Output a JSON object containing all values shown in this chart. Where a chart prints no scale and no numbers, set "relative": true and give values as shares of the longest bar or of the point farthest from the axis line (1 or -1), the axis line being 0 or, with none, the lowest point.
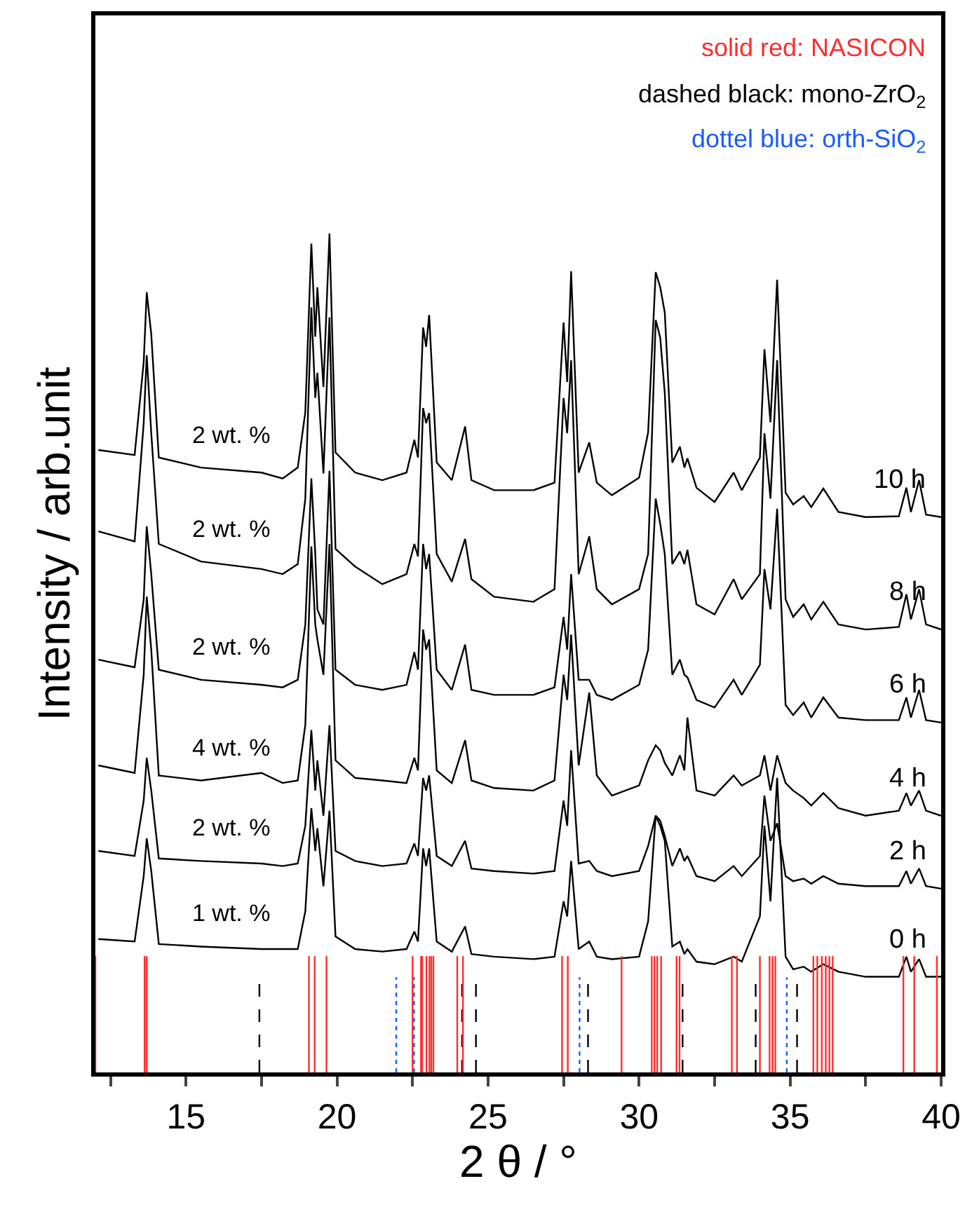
{
  "chart_data": {
    "type": "line",
    "relative": true,
    "xlabel": "2 θ / °",
    "ylabel": "Intensity / arb.unit",
    "xlim": [
      12,
      40
    ],
    "xticks": [
      {
        "value": 12.5,
        "label": null
      },
      15,
      {
        "value": 17.5,
        "label": null
      },
      20,
      {
        "value": 22.5,
        "label": null
      },
      25,
      {
        "value": 27.5,
        "label": null
      },
      30,
      {
        "value": 32.5,
        "label": null
      },
      35,
      {
        "value": 37.5,
        "label": null
      },
      40
    ],
    "tick_labels": "x",
    "legend": false,
    "marker": "none",
    "line_style": "solid",
    "x": [
      12.1,
      13.3,
      13.6,
      13.7,
      13.85,
      14.1,
      15.5,
      17.5,
      18.2,
      18.7,
      18.95,
      19.15,
      19.28,
      19.35,
      19.55,
      19.75,
      19.95,
      20.6,
      21.5,
      22.3,
      22.56,
      22.68,
      22.85,
      22.95,
      23.05,
      23.3,
      23.8,
      24.24,
      24.45,
      25.2,
      26.5,
      27.2,
      27.5,
      27.62,
      27.75,
      28.0,
      28.35,
      28.6,
      29.1,
      30.0,
      30.3,
      30.55,
      30.7,
      30.85,
      31.1,
      31.35,
      31.5,
      31.6,
      31.9,
      32.5,
      33.13,
      33.4,
      34.0,
      34.15,
      34.35,
      34.57,
      34.85,
      35.1,
      35.45,
      35.7,
      36.1,
      36.6,
      37.5,
      38.6,
      38.85,
      39.0,
      39.27,
      39.5,
      40.0
    ],
    "series": [
      {
        "name": "10 h",
        "color": "#000000",
        "values": [
          0.742,
          0.736,
          0.847,
          0.93,
          0.88,
          0.733,
          0.721,
          0.715,
          0.708,
          0.721,
          0.787,
          0.988,
          0.877,
          0.936,
          0.817,
          1.0,
          0.739,
          0.715,
          0.706,
          0.715,
          0.754,
          0.733,
          0.888,
          0.865,
          0.903,
          0.727,
          0.706,
          0.77,
          0.706,
          0.694,
          0.694,
          0.703,
          0.894,
          0.823,
          0.955,
          0.715,
          0.751,
          0.703,
          0.688,
          0.709,
          0.763,
          0.954,
          0.936,
          0.906,
          0.727,
          0.746,
          0.721,
          0.732,
          0.697,
          0.68,
          0.715,
          0.694,
          0.733,
          0.862,
          0.775,
          0.945,
          0.691,
          0.677,
          0.687,
          0.674,
          0.696,
          0.668,
          0.662,
          0.663,
          0.697,
          0.668,
          0.706,
          0.665,
          0.662
        ]
      },
      {
        "name": "8 h",
        "color": "#000000",
        "values": [
          0.645,
          0.633,
          0.774,
          0.855,
          0.762,
          0.63,
          0.609,
          0.6,
          0.594,
          0.606,
          0.684,
          0.912,
          0.804,
          0.834,
          0.714,
          0.9,
          0.624,
          0.603,
          0.582,
          0.594,
          0.63,
          0.615,
          0.792,
          0.774,
          0.786,
          0.618,
          0.585,
          0.636,
          0.588,
          0.567,
          0.561,
          0.576,
          0.804,
          0.762,
          0.849,
          0.594,
          0.639,
          0.576,
          0.558,
          0.576,
          0.618,
          0.897,
          0.876,
          0.81,
          0.606,
          0.621,
          0.606,
          0.623,
          0.558,
          0.546,
          0.588,
          0.564,
          0.594,
          0.762,
          0.684,
          0.849,
          0.564,
          0.543,
          0.558,
          0.54,
          0.561,
          0.534,
          0.528,
          0.531,
          0.57,
          0.54,
          0.576,
          0.534,
          0.528
        ]
      },
      {
        "name": "6 h",
        "color": "#000000",
        "values": [
          0.492,
          0.483,
          0.564,
          0.651,
          0.594,
          0.48,
          0.468,
          0.462,
          0.459,
          0.468,
          0.534,
          0.708,
          0.618,
          0.552,
          0.534,
          0.717,
          0.48,
          0.462,
          0.456,
          0.462,
          0.501,
          0.48,
          0.63,
          0.6,
          0.618,
          0.48,
          0.456,
          0.51,
          0.456,
          0.45,
          0.45,
          0.459,
          0.543,
          0.504,
          0.594,
          0.468,
          0.468,
          0.45,
          0.444,
          0.462,
          0.504,
          0.684,
          0.654,
          0.618,
          0.474,
          0.492,
          0.474,
          0.471,
          0.444,
          0.435,
          0.468,
          0.45,
          0.486,
          0.6,
          0.552,
          0.672,
          0.438,
          0.426,
          0.441,
          0.423,
          0.447,
          0.423,
          0.42,
          0.42,
          0.447,
          0.423,
          0.456,
          0.42,
          0.417
        ]
      },
      {
        "name": "4 h",
        "color": "#000000",
        "values": [
          0.366,
          0.357,
          0.474,
          0.567,
          0.504,
          0.354,
          0.348,
          0.357,
          0.345,
          0.348,
          0.414,
          0.627,
          0.534,
          0.516,
          0.474,
          0.63,
          0.372,
          0.351,
          0.348,
          0.345,
          0.375,
          0.36,
          0.528,
          0.504,
          0.516,
          0.36,
          0.345,
          0.396,
          0.348,
          0.339,
          0.336,
          0.348,
          0.474,
          0.444,
          0.522,
          0.366,
          0.453,
          0.354,
          0.33,
          0.342,
          0.372,
          0.39,
          0.384,
          0.369,
          0.354,
          0.378,
          0.36,
          0.423,
          0.336,
          0.33,
          0.354,
          0.342,
          0.354,
          0.378,
          0.336,
          0.378,
          0.345,
          0.336,
          0.327,
          0.318,
          0.333,
          0.315,
          0.306,
          0.312,
          0.333,
          0.318,
          0.336,
          0.312,
          0.306
        ]
      },
      {
        "name": "2 h",
        "color": "#000000",
        "values": [
          0.264,
          0.258,
          0.324,
          0.375,
          0.336,
          0.255,
          0.252,
          0.249,
          0.246,
          0.249,
          0.294,
          0.408,
          0.336,
          0.372,
          0.306,
          0.414,
          0.264,
          0.252,
          0.246,
          0.249,
          0.273,
          0.258,
          0.351,
          0.336,
          0.354,
          0.258,
          0.246,
          0.276,
          0.243,
          0.24,
          0.237,
          0.24,
          0.324,
          0.294,
          0.384,
          0.249,
          0.252,
          0.24,
          0.234,
          0.24,
          0.27,
          0.306,
          0.3,
          0.282,
          0.246,
          0.267,
          0.252,
          0.258,
          0.234,
          0.228,
          0.246,
          0.234,
          0.258,
          0.33,
          0.276,
          0.297,
          0.234,
          0.228,
          0.231,
          0.225,
          0.234,
          0.225,
          0.222,
          0.222,
          0.24,
          0.225,
          0.243,
          0.222,
          0.219
        ]
      },
      {
        "name": "0 h",
        "color": "#000000",
        "values": [
          0.159,
          0.156,
          0.234,
          0.279,
          0.24,
          0.153,
          0.15,
          0.147,
          0.147,
          0.147,
          0.192,
          0.315,
          0.264,
          0.291,
          0.222,
          0.312,
          0.162,
          0.147,
          0.144,
          0.147,
          0.168,
          0.156,
          0.267,
          0.246,
          0.267,
          0.156,
          0.144,
          0.174,
          0.141,
          0.138,
          0.135,
          0.138,
          0.204,
          0.186,
          0.252,
          0.147,
          0.156,
          0.138,
          0.135,
          0.138,
          0.18,
          0.306,
          0.294,
          0.276,
          0.15,
          0.156,
          0.141,
          0.147,
          0.132,
          0.129,
          0.138,
          0.132,
          0.186,
          0.294,
          0.204,
          0.351,
          0.138,
          0.123,
          0.126,
          0.12,
          0.129,
          0.12,
          0.114,
          0.114,
          0.138,
          0.12,
          0.135,
          0.114,
          0.114
        ]
      }
    ],
    "ref_lines": [
      {
        "axis": "x",
        "value": 12.0,
        "color": "#ff2d2d",
        "line_style": "solid"
      },
      {
        "axis": "x",
        "value": 13.63,
        "color": "#ff2d2d",
        "line_style": "solid"
      },
      {
        "axis": "x",
        "value": 13.7,
        "color": "#ff2d2d",
        "line_style": "solid"
      },
      {
        "axis": "x",
        "value": 17.43,
        "color": "#000000",
        "line_style": "dashed"
      },
      {
        "axis": "x",
        "value": 19.07,
        "color": "#ff2d2d",
        "line_style": "solid"
      },
      {
        "axis": "x",
        "value": 19.26,
        "color": "#ff2d2d",
        "line_style": "solid"
      },
      {
        "axis": "x",
        "value": 19.65,
        "color": "#ff2d2d",
        "line_style": "solid"
      },
      {
        "axis": "x",
        "value": 21.96,
        "color": "#1a5cff",
        "line_style": "dotted"
      },
      {
        "axis": "x",
        "value": 22.5,
        "color": "#ff2d2d",
        "line_style": "solid"
      },
      {
        "axis": "x",
        "value": 22.55,
        "color": "#1a5cff",
        "line_style": "dotted"
      },
      {
        "axis": "x",
        "value": 22.78,
        "color": "#ff2d2d",
        "line_style": "solid"
      },
      {
        "axis": "x",
        "value": 22.82,
        "color": "#ff2d2d",
        "line_style": "solid"
      },
      {
        "axis": "x",
        "value": 22.96,
        "color": "#ff2d2d",
        "line_style": "solid"
      },
      {
        "axis": "x",
        "value": 23.06,
        "color": "#ff2d2d",
        "line_style": "solid"
      },
      {
        "axis": "x",
        "value": 23.12,
        "color": "#ff2d2d",
        "line_style": "solid"
      },
      {
        "axis": "x",
        "value": 23.19,
        "color": "#ff2d2d",
        "line_style": "solid"
      },
      {
        "axis": "x",
        "value": 23.98,
        "color": "#ff2d2d",
        "line_style": "solid"
      },
      {
        "axis": "x",
        "value": 24.14,
        "color": "#000000",
        "line_style": "dashed"
      },
      {
        "axis": "x",
        "value": 24.17,
        "color": "#ff2d2d",
        "line_style": "solid"
      },
      {
        "axis": "x",
        "value": 24.6,
        "color": "#000000",
        "line_style": "dashed"
      },
      {
        "axis": "x",
        "value": 27.45,
        "color": "#ff2d2d",
        "line_style": "solid"
      },
      {
        "axis": "x",
        "value": 27.64,
        "color": "#ff2d2d",
        "line_style": "solid"
      },
      {
        "axis": "x",
        "value": 28.03,
        "color": "#1a5cff",
        "line_style": "dotted"
      },
      {
        "axis": "x",
        "value": 28.31,
        "color": "#000000",
        "line_style": "dashed"
      },
      {
        "axis": "x",
        "value": 29.42,
        "color": "#ff2d2d",
        "line_style": "solid"
      },
      {
        "axis": "x",
        "value": 30.42,
        "color": "#ff2d2d",
        "line_style": "solid"
      },
      {
        "axis": "x",
        "value": 30.51,
        "color": "#ff2d2d",
        "line_style": "solid"
      },
      {
        "axis": "x",
        "value": 30.6,
        "color": "#ff2d2d",
        "line_style": "solid"
      },
      {
        "axis": "x",
        "value": 30.73,
        "color": "#ff2d2d",
        "line_style": "solid"
      },
      {
        "axis": "x",
        "value": 31.24,
        "color": "#ff2d2d",
        "line_style": "solid"
      },
      {
        "axis": "x",
        "value": 31.34,
        "color": "#ff2d2d",
        "line_style": "solid"
      },
      {
        "axis": "x",
        "value": 31.44,
        "color": "#000000",
        "line_style": "dashed"
      },
      {
        "axis": "x",
        "value": 33.07,
        "color": "#ff2d2d",
        "line_style": "solid"
      },
      {
        "axis": "x",
        "value": 33.24,
        "color": "#ff2d2d",
        "line_style": "solid"
      },
      {
        "axis": "x",
        "value": 33.86,
        "color": "#000000",
        "line_style": "dashed"
      },
      {
        "axis": "x",
        "value": 34.0,
        "color": "#ff2d2d",
        "line_style": "solid"
      },
      {
        "axis": "x",
        "value": 34.32,
        "color": "#ff2d2d",
        "line_style": "solid"
      },
      {
        "axis": "x",
        "value": 34.42,
        "color": "#ff2d2d",
        "line_style": "solid"
      },
      {
        "axis": "x",
        "value": 34.51,
        "color": "#ff2d2d",
        "line_style": "solid"
      },
      {
        "axis": "x",
        "value": 34.89,
        "color": "#1a5cff",
        "line_style": "dotted"
      },
      {
        "axis": "x",
        "value": 35.23,
        "color": "#000000",
        "line_style": "dashed"
      },
      {
        "axis": "x",
        "value": 35.77,
        "color": "#ff2d2d",
        "line_style": "solid"
      },
      {
        "axis": "x",
        "value": 35.9,
        "color": "#ff2d2d",
        "line_style": "solid"
      },
      {
        "axis": "x",
        "value": 36.05,
        "color": "#ff2d2d",
        "line_style": "solid"
      },
      {
        "axis": "x",
        "value": 36.18,
        "color": "#ff2d2d",
        "line_style": "solid"
      },
      {
        "axis": "x",
        "value": 36.3,
        "color": "#ff2d2d",
        "line_style": "solid"
      },
      {
        "axis": "x",
        "value": 36.41,
        "color": "#ff2d2d",
        "line_style": "solid"
      },
      {
        "axis": "x",
        "value": 38.75,
        "color": "#ff2d2d",
        "line_style": "solid"
      },
      {
        "axis": "x",
        "value": 39.11,
        "color": "#ff2d2d",
        "line_style": "solid"
      },
      {
        "axis": "x",
        "value": 39.86,
        "color": "#ff2d2d",
        "line_style": "solid"
      }
    ],
    "annotations": [
      "solid red: NASICON",
      "dashed black: mono-ZrO$_{2}$",
      "dottel blue: orth-SiO$_{2}$",
      "2 wt. %",
      "2 wt. %",
      "2 wt. %",
      "4 wt. %",
      "2 wt. %",
      "1 wt. %"
    ]
  }
}
